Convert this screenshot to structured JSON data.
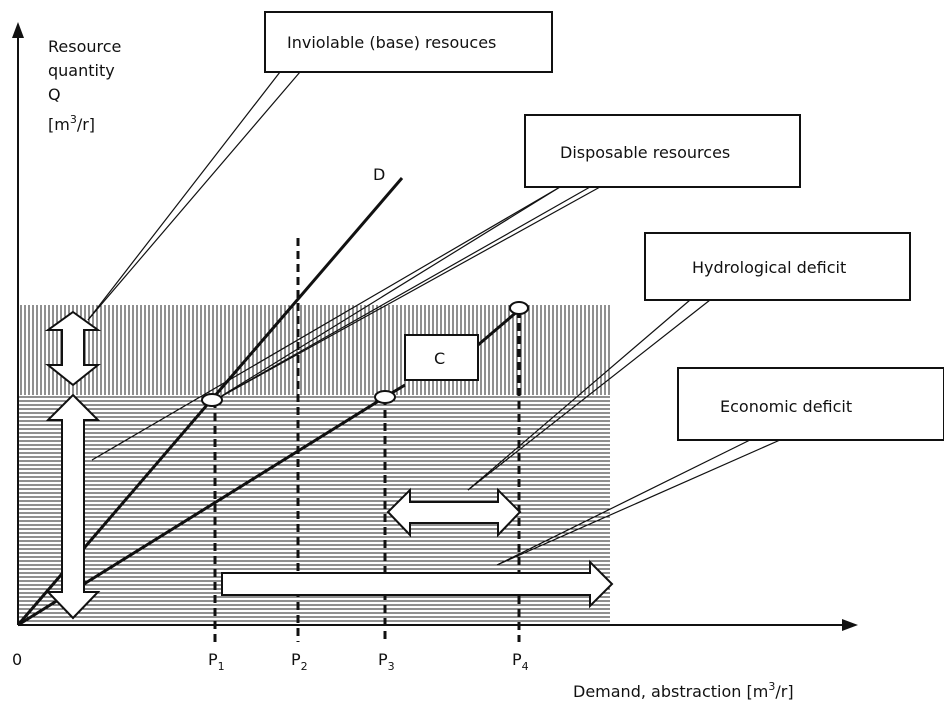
{
  "axes": {
    "y_label_lines": [
      "Resource",
      "quantity",
      "Q"
    ],
    "y_unit": {
      "pre": "[m",
      "sup": "3",
      "post": "/r]"
    },
    "origin": "0",
    "x_label": {
      "pre": "Demand, abstraction [m",
      "sup": "3",
      "post": "/r]"
    }
  },
  "callouts": [
    "Inviolable (base) resouces",
    "Disposable resources",
    "Hydrological deficit",
    "Economic deficit"
  ],
  "lines": {
    "d": "D",
    "c": "C"
  },
  "points": [
    {
      "base": "P",
      "sub": "1"
    },
    {
      "base": "P",
      "sub": "2"
    },
    {
      "base": "P",
      "sub": "3"
    },
    {
      "base": "P",
      "sub": "4"
    }
  ]
}
